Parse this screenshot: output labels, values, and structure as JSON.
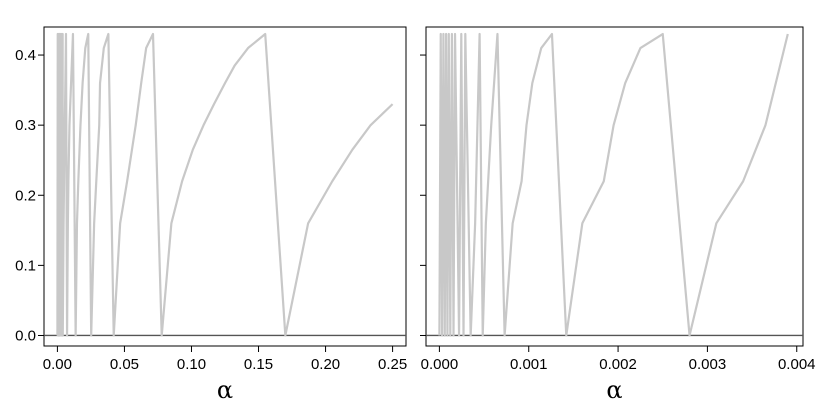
{
  "chart_data": [
    {
      "type": "line",
      "title": "",
      "xlabel": "α",
      "ylabel": "",
      "xlim": [
        -0.01,
        0.26
      ],
      "ylim": [
        -0.015,
        0.44
      ],
      "xticks": [
        0.0,
        0.05,
        0.1,
        0.15,
        0.2,
        0.25
      ],
      "xtick_labels": [
        "0.00",
        "0.05",
        "0.10",
        "0.15",
        "0.20",
        "0.25"
      ],
      "yticks": [
        0.0,
        0.1,
        0.2,
        0.3,
        0.4
      ],
      "ytick_labels": [
        "0.0",
        "0.1",
        "0.2",
        "0.3",
        "0.4"
      ],
      "hline": 0.0,
      "grid": false,
      "line_color": "#c8c8c8",
      "hline_color": "#555555",
      "series": [
        {
          "x": [
            0.0,
            0.00025,
            0.0005,
            0.0008,
            0.001,
            0.0013,
            0.0016,
            0.0018,
            0.002,
            0.0024,
            0.0028,
            0.003,
            0.0035,
            0.0039,
            0.004,
            0.0046,
            0.0052,
            0.0058,
            0.0064,
            0.0072,
            0.0078,
            0.0082,
            0.009,
            0.0102,
            0.0116,
            0.0136,
            0.0146,
            0.0156,
            0.0172,
            0.0188,
            0.0208,
            0.023,
            0.0252,
            0.0274,
            0.029,
            0.0312,
            0.0318,
            0.0346,
            0.038,
            0.042,
            0.0468,
            0.052,
            0.0584,
            0.0625,
            0.0662,
            0.0713,
            0.0778,
            0.085,
            0.093,
            0.101,
            0.109,
            0.1168,
            0.125,
            0.1322,
            0.1422,
            0.155,
            0.17,
            0.187,
            0.205,
            0.22,
            0.2336,
            0.25
          ],
          "y": [
            0.0,
            0.43,
            0.0,
            0.43,
            0.0,
            0.43,
            0.0,
            0.43,
            0.0,
            0.43,
            0.0,
            0.43,
            0.0,
            0.43,
            0.0,
            0.16,
            0.26,
            0.34,
            0.43,
            0.0,
            0.16,
            0.22,
            0.3,
            0.36,
            0.43,
            0.0,
            0.16,
            0.22,
            0.3,
            0.36,
            0.41,
            0.43,
            0.0,
            0.16,
            0.22,
            0.3,
            0.36,
            0.41,
            0.43,
            0.0,
            0.16,
            0.22,
            0.3,
            0.36,
            0.41,
            0.43,
            0.0,
            0.16,
            0.22,
            0.265,
            0.3,
            0.33,
            0.36,
            0.385,
            0.41,
            0.43,
            0.0,
            0.16,
            0.22,
            0.265,
            0.3,
            0.33
          ]
        }
      ]
    },
    {
      "type": "line",
      "title": "",
      "xlabel": "α",
      "ylabel": "",
      "xlim": [
        -0.00015,
        0.00407
      ],
      "ylim": [
        -0.015,
        0.44
      ],
      "xticks": [
        0.0,
        0.001,
        0.002,
        0.003,
        0.004
      ],
      "xtick_labels": [
        "0.000",
        "0.001",
        "0.002",
        "0.003",
        "0.004"
      ],
      "yticks": [
        0.0,
        0.1,
        0.2,
        0.3,
        0.4
      ],
      "ytick_labels": [],
      "hline": 0.0,
      "grid": false,
      "line_color": "#c8c8c8",
      "hline_color": "#555555",
      "series": [
        {
          "x": [
            0.0,
            1.5e-05,
            3e-05,
            4.5e-05,
            6e-05,
            7.5e-05,
            9e-05,
            0.000105,
            0.000122,
            0.00014,
            0.000158,
            0.000175,
            0.00022,
            0.000245,
            0.00027,
            0.00029,
            0.00035,
            0.0004,
            0.00045,
            0.000485,
            0.00052,
            0.00058,
            0.00065,
            0.00073,
            0.00082,
            0.00092,
            0.000975,
            0.00104,
            0.00114,
            0.00126,
            0.00142,
            0.0016,
            0.00184,
            0.00195,
            0.00208,
            0.00225,
            0.0025,
            0.0028,
            0.0031,
            0.0034,
            0.00365,
            0.0039
          ],
          "y": [
            0.0,
            0.43,
            0.0,
            0.43,
            0.0,
            0.43,
            0.0,
            0.43,
            0.0,
            0.43,
            0.0,
            0.43,
            0.0,
            0.43,
            0.0,
            0.43,
            0.0,
            0.16,
            0.43,
            0.0,
            0.16,
            0.3,
            0.43,
            0.0,
            0.16,
            0.22,
            0.3,
            0.36,
            0.41,
            0.43,
            0.0,
            0.16,
            0.22,
            0.3,
            0.36,
            0.41,
            0.43,
            0.0,
            0.16,
            0.22,
            0.3,
            0.43
          ]
        }
      ]
    }
  ]
}
